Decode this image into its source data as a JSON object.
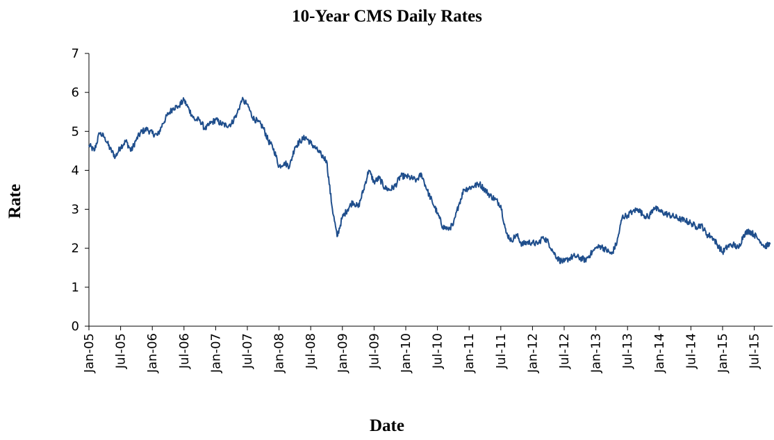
{
  "chart_data": {
    "type": "line",
    "title": "10-Year CMS Daily Rates",
    "xlabel": "Date",
    "ylabel": "Rate",
    "ylim": [
      0,
      7
    ],
    "yticks": [
      0,
      1,
      2,
      3,
      4,
      5,
      6,
      7
    ],
    "xticks": [
      "Jan-05",
      "Jul-05",
      "Jan-06",
      "Jul-06",
      "Jan-07",
      "Jul-07",
      "Jan-08",
      "Jul-08",
      "Jan-09",
      "Jul-09",
      "Jan-10",
      "Jul-10",
      "Jan-11",
      "Jul-11",
      "Jan-12",
      "Jul-12",
      "Jan-13",
      "Jul-13",
      "Jan-14",
      "Jul-14",
      "Jan-15",
      "Jul-15"
    ],
    "grid": false,
    "legend": "none",
    "line_color": "#1f4e8c",
    "series": [
      {
        "x": [
          "2005-01",
          "2005-02",
          "2005-03",
          "2005-04",
          "2005-05",
          "2005-06",
          "2005-07",
          "2005-08",
          "2005-09",
          "2005-10",
          "2005-11",
          "2005-12",
          "2006-01",
          "2006-02",
          "2006-03",
          "2006-04",
          "2006-05",
          "2006-06",
          "2006-07",
          "2006-08",
          "2006-09",
          "2006-10",
          "2006-11",
          "2006-12",
          "2007-01",
          "2007-02",
          "2007-03",
          "2007-04",
          "2007-05",
          "2007-06",
          "2007-07",
          "2007-08",
          "2007-09",
          "2007-10",
          "2007-11",
          "2007-12",
          "2008-01",
          "2008-02",
          "2008-03",
          "2008-04",
          "2008-05",
          "2008-06",
          "2008-07",
          "2008-08",
          "2008-09",
          "2008-10",
          "2008-11",
          "2008-12",
          "2009-01",
          "2009-02",
          "2009-03",
          "2009-04",
          "2009-05",
          "2009-06",
          "2009-07",
          "2009-08",
          "2009-09",
          "2009-10",
          "2009-11",
          "2009-12",
          "2010-01",
          "2010-02",
          "2010-03",
          "2010-04",
          "2010-05",
          "2010-06",
          "2010-07",
          "2010-08",
          "2010-09",
          "2010-10",
          "2010-11",
          "2010-12",
          "2011-01",
          "2011-02",
          "2011-03",
          "2011-04",
          "2011-05",
          "2011-06",
          "2011-07",
          "2011-08",
          "2011-09",
          "2011-10",
          "2011-11",
          "2011-12",
          "2012-01",
          "2012-02",
          "2012-03",
          "2012-04",
          "2012-05",
          "2012-06",
          "2012-07",
          "2012-08",
          "2012-09",
          "2012-10",
          "2012-11",
          "2012-12",
          "2013-01",
          "2013-02",
          "2013-03",
          "2013-04",
          "2013-05",
          "2013-06",
          "2013-07",
          "2013-08",
          "2013-09",
          "2013-10",
          "2013-11",
          "2013-12",
          "2014-01",
          "2014-02",
          "2014-03",
          "2014-04",
          "2014-05",
          "2014-06",
          "2014-07",
          "2014-08",
          "2014-09",
          "2014-10",
          "2014-11",
          "2014-12",
          "2015-01",
          "2015-02",
          "2015-03",
          "2015-04",
          "2015-05",
          "2015-06",
          "2015-07",
          "2015-08",
          "2015-09",
          "2015-10"
        ],
        "values": [
          4.65,
          4.5,
          4.95,
          4.85,
          4.55,
          4.35,
          4.6,
          4.75,
          4.5,
          4.8,
          5.0,
          5.05,
          4.95,
          4.9,
          5.2,
          5.45,
          5.6,
          5.65,
          5.8,
          5.55,
          5.3,
          5.3,
          5.05,
          5.2,
          5.3,
          5.2,
          5.15,
          5.2,
          5.45,
          5.8,
          5.7,
          5.35,
          5.25,
          5.1,
          4.75,
          4.55,
          4.1,
          4.2,
          4.1,
          4.6,
          4.75,
          4.85,
          4.7,
          4.55,
          4.4,
          4.25,
          3.1,
          2.3,
          2.8,
          3.0,
          3.2,
          3.05,
          3.5,
          4.0,
          3.7,
          3.8,
          3.55,
          3.5,
          3.6,
          3.85,
          3.85,
          3.8,
          3.75,
          3.9,
          3.5,
          3.2,
          2.9,
          2.55,
          2.5,
          2.6,
          3.1,
          3.5,
          3.55,
          3.6,
          3.65,
          3.5,
          3.35,
          3.25,
          3.1,
          2.4,
          2.2,
          2.35,
          2.1,
          2.15,
          2.15,
          2.1,
          2.3,
          2.15,
          1.9,
          1.7,
          1.65,
          1.75,
          1.8,
          1.75,
          1.7,
          1.85,
          2.0,
          2.05,
          1.95,
          1.85,
          2.15,
          2.8,
          2.85,
          2.95,
          3.0,
          2.85,
          2.8,
          3.05,
          2.95,
          2.9,
          2.85,
          2.8,
          2.75,
          2.7,
          2.65,
          2.55,
          2.6,
          2.35,
          2.3,
          2.1,
          1.9,
          2.05,
          2.1,
          2.0,
          2.35,
          2.45,
          2.35,
          2.2,
          2.05,
          2.1
        ]
      }
    ]
  }
}
